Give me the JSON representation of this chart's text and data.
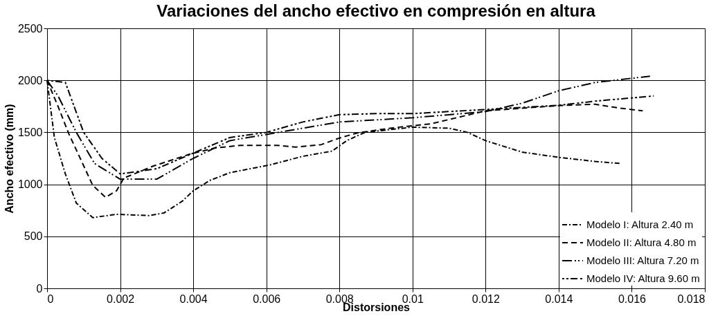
{
  "chart_data": {
    "type": "line",
    "title": "Variaciones del ancho efectivo en compresión en altura",
    "xlabel": "Distorsiones",
    "ylabel": "Ancho efectivo (mm)",
    "xlim": [
      0,
      0.018
    ],
    "xticks": [
      0,
      0.002,
      0.004,
      0.006,
      0.008,
      0.01,
      0.012,
      0.014,
      0.016,
      0.018
    ],
    "ylim": [
      0,
      2500
    ],
    "yticks": [
      0,
      500,
      1000,
      1500,
      2000,
      2500
    ],
    "grid": true,
    "legend": "bottom right",
    "marker": "none",
    "line_style": "dashed",
    "series": [
      {
        "name": "Modelo I: Altura 2.40 m",
        "color": "#000000",
        "x": [
          0,
          0.0002,
          0.0005,
          0.0008,
          0.00125,
          0.0019,
          0.0028,
          0.0032,
          0.0037,
          0.004,
          0.00445,
          0.005,
          0.0061,
          0.007,
          0.0078,
          0.0082,
          0.0087,
          0.01,
          0.011,
          0.0115,
          0.012,
          0.013,
          0.014,
          0.015,
          0.0157
        ],
        "values": [
          2000,
          1450,
          1100,
          820,
          680,
          712,
          700,
          725,
          838,
          938,
          1037,
          1112,
          1187,
          1270,
          1320,
          1420,
          1500,
          1550,
          1540,
          1500,
          1420,
          1310,
          1260,
          1220,
          1200
        ]
      },
      {
        "name": "Modelo II: Altura 4.80 m",
        "color": "#000000",
        "x": [
          0,
          0.0003,
          0.00059,
          0.00092,
          0.00125,
          0.0016,
          0.0019,
          0.0021,
          0.0029,
          0.0039,
          0.0046,
          0.0053,
          0.0063,
          0.0068,
          0.0075,
          0.008,
          0.0085,
          0.0095,
          0.0105,
          0.0112,
          0.012,
          0.014,
          0.015,
          0.0157,
          0.0163
        ],
        "values": [
          2000,
          1750,
          1490,
          1240,
          990,
          875,
          938,
          1060,
          1175,
          1290,
          1350,
          1375,
          1375,
          1358,
          1382,
          1445,
          1495,
          1545,
          1582,
          1640,
          1707,
          1757,
          1770,
          1732,
          1707
        ]
      },
      {
        "name": "Modelo III: Altura 7.20 m",
        "color": "#000000",
        "x": [
          0,
          0.0003,
          0.0008,
          0.0013,
          0.002,
          0.003,
          0.004,
          0.005,
          0.006,
          0.008,
          0.01,
          0.012,
          0.013,
          0.014,
          0.015,
          0.0165
        ],
        "values": [
          2000,
          1850,
          1500,
          1200,
          1050,
          1050,
          1250,
          1420,
          1480,
          1600,
          1640,
          1700,
          1780,
          1900,
          1980,
          2040
        ]
      },
      {
        "name": "Modelo IV: Altura 9.60 m",
        "color": "#000000",
        "x": [
          0,
          0.0005,
          0.001,
          0.0015,
          0.002,
          0.003,
          0.004,
          0.005,
          0.006,
          0.007,
          0.008,
          0.009,
          0.01,
          0.012,
          0.014,
          0.015,
          0.0166
        ],
        "values": [
          2000,
          1980,
          1500,
          1250,
          1100,
          1150,
          1300,
          1450,
          1500,
          1600,
          1670,
          1680,
          1680,
          1720,
          1760,
          1800,
          1850
        ]
      }
    ]
  }
}
